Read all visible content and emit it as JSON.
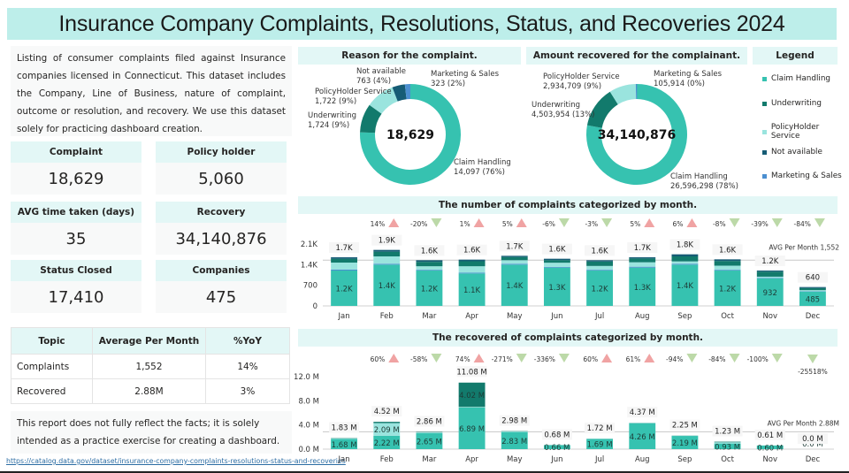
{
  "title": "Insurance Company Complaints, Resolutions, Status, and Recoveries 2024",
  "description": "Listing of consumer complaints filed against Insurance companies licensed in Connecticut. This dataset includes the Company, Line of Business, nature of complaint, outcome or resolution, and recovery. We use this dataset solely for practicing dashboard creation.",
  "kpis": [
    {
      "label": "Complaint",
      "value": "18,629"
    },
    {
      "label": "Policy holder",
      "value": "5,060"
    },
    {
      "label": "AVG time taken (days)",
      "value": "35"
    },
    {
      "label": "Recovery",
      "value": "34,140,876"
    },
    {
      "label": "Status Closed",
      "value": "17,410"
    },
    {
      "label": "Companies",
      "value": "475"
    }
  ],
  "summary_table": {
    "headers": [
      "Topic",
      "Average Per Month",
      "%YoY"
    ],
    "rows": [
      [
        "Complaints",
        "1,552",
        "14%"
      ],
      [
        "Recovered",
        "2.88M",
        "3%"
      ]
    ]
  },
  "note": "This report does not fully reflect the facts; it is solely intended as a practice exercise for creating a dashboard.",
  "source_link": "https://catalog.data.gov/dataset/insurance-company-complaints-resolutions-status-and-recoveries",
  "colors": {
    "claim_handling": "#36c2b0",
    "underwriting": "#127a6c",
    "policyholder_service": "#9ae4de",
    "not_available": "#165c75",
    "marketing_sales": "#4b8fd0",
    "up_arrow": "#f0a3a3",
    "down_arrow": "#bcd9a8",
    "header_bg": "#e3f7f6",
    "title_bg": "#bdeeea"
  },
  "legend": {
    "title": "Legend",
    "items": [
      "Claim Handling",
      "Underwriting",
      "PolicyHolder Service",
      "Not available",
      "Marketing & Sales"
    ]
  },
  "chart_data": [
    {
      "type": "pie",
      "title": "Reason for the complaint.",
      "center_label": "18,629",
      "slices": [
        {
          "name": "Claim Handling",
          "value": 14097,
          "label": "14,097 (76%)"
        },
        {
          "name": "Underwriting",
          "value": 1724,
          "label": "1,724 (9%)"
        },
        {
          "name": "PolicyHolder Service",
          "value": 1722,
          "label": "1,722 (9%)"
        },
        {
          "name": "Not available",
          "value": 763,
          "label": "763 (4%)"
        },
        {
          "name": "Marketing & Sales",
          "value": 323,
          "label": "323 (2%)"
        }
      ]
    },
    {
      "type": "pie",
      "title": "Amount recovered for the complainant.",
      "center_label": "34,140,876",
      "slices": [
        {
          "name": "Claim Handling",
          "value": 26596298,
          "label": "26,596,298 (78%)"
        },
        {
          "name": "Underwriting",
          "value": 4503954,
          "label": "4,503,954 (13%)"
        },
        {
          "name": "PolicyHolder Service",
          "value": 2934709,
          "label": "2,934,709 (9%)"
        },
        {
          "name": "Marketing & Sales",
          "value": 105914,
          "label": "105,914 (0%)"
        }
      ]
    },
    {
      "type": "bar",
      "stacked": true,
      "title": "The number of complaints categorized by month.",
      "categories": [
        "Jan",
        "Feb",
        "Mar",
        "Apr",
        "May",
        "Jun",
        "Jul",
        "Aug",
        "Sep",
        "Oct",
        "Nov",
        "Dec"
      ],
      "ylim": [
        0,
        2100
      ],
      "yticks": [
        "0",
        "700",
        "1.4K",
        "2.1K"
      ],
      "ytick_values": [
        0,
        700,
        1400,
        2100
      ],
      "series": [
        {
          "name": "Claim Handling",
          "values": [
            1200,
            1400,
            1200,
            1100,
            1400,
            1300,
            1200,
            1300,
            1400,
            1200,
            932,
            485
          ],
          "labels": [
            "1.2K",
            "1.4K",
            "1.2K",
            "1.1K",
            "1.4K",
            "1.3K",
            "1.2K",
            "1.3K",
            "1.4K",
            "1.2K",
            "932",
            "485"
          ]
        },
        {
          "name": "Marketing & Sales",
          "values": [
            30,
            30,
            25,
            25,
            30,
            25,
            25,
            30,
            30,
            25,
            20,
            10
          ]
        },
        {
          "name": "PolicyHolder Service",
          "values": [
            240,
            250,
            120,
            220,
            120,
            140,
            130,
            150,
            80,
            140,
            40,
            40
          ]
        },
        {
          "name": "Underwriting",
          "values": [
            130,
            160,
            150,
            170,
            110,
            90,
            150,
            130,
            170,
            160,
            170,
            70
          ]
        },
        {
          "name": "Not available",
          "values": [
            50,
            60,
            55,
            55,
            40,
            45,
            45,
            40,
            70,
            55,
            38,
            35
          ]
        }
      ],
      "totals": [
        "1.7K",
        "1.9K",
        "1.6K",
        "1.6K",
        "1.7K",
        "1.6K",
        "1.6K",
        "1.7K",
        "1.8K",
        "1.6K",
        "1.2K",
        "640"
      ],
      "total_values": [
        1650,
        1900,
        1550,
        1570,
        1700,
        1600,
        1550,
        1650,
        1750,
        1580,
        1200,
        640
      ],
      "yoy": [
        "14%",
        "-20%",
        "1%",
        "5%",
        "-6%",
        "-3%",
        "5%",
        "6%",
        "-8%",
        "-39%",
        "-84%"
      ],
      "yoy_direction": [
        "up",
        "down",
        "up",
        "up",
        "down",
        "down",
        "up",
        "up",
        "down",
        "down",
        "down"
      ],
      "reference_line": {
        "label": "AVG Per Month 1,552",
        "value": 1552
      }
    },
    {
      "type": "bar",
      "stacked": true,
      "title": "The recovered of complaints categorized by month.",
      "categories": [
        "Jan",
        "Feb",
        "Mar",
        "Apr",
        "May",
        "Jun",
        "Jul",
        "Aug",
        "Sep",
        "Oct",
        "Nov",
        "Dec"
      ],
      "ylim": [
        0,
        12
      ],
      "yticks": [
        "0.0 M",
        "4.0 M",
        "8.0 M",
        "12.0 M"
      ],
      "ytick_values": [
        0,
        4,
        8,
        12
      ],
      "series": [
        {
          "name": "Claim Handling",
          "values": [
            1.68,
            2.22,
            2.65,
            6.89,
            2.83,
            0.66,
            1.69,
            4.26,
            2.19,
            0.93,
            0.6,
            0.0
          ],
          "labels": [
            "1.68 M",
            "2.22 M",
            "2.65 M",
            "6.89 M",
            "2.83 M",
            "0.66 M",
            "1.69 M",
            "4.26 M",
            "2.19 M",
            "0.93 M",
            "0.60 M",
            "0.0 M"
          ]
        },
        {
          "name": "PolicyHolder Service",
          "values": [
            0.1,
            2.09,
            0.15,
            0.1,
            0.1,
            0.01,
            0.02,
            0.08,
            0.04,
            0.2,
            0.01,
            0.0
          ],
          "labels": [
            "",
            "2.09 M",
            "",
            "",
            "",
            "",
            "",
            "",
            "",
            "",
            "",
            ""
          ]
        },
        {
          "name": "Underwriting",
          "values": [
            0.05,
            0.21,
            0.06,
            4.02,
            0.05,
            0.01,
            0.01,
            0.03,
            0.02,
            0.1,
            0.0,
            0.0
          ],
          "labels": [
            "",
            "",
            "",
            "4.02 M",
            "",
            "",
            "",
            "",
            "",
            "",
            "",
            ""
          ]
        }
      ],
      "totals": [
        "1.83 M",
        "4.52 M",
        "2.86 M",
        "11.08 M",
        "2.98 M",
        "0.68 M",
        "1.72 M",
        "4.37 M",
        "2.25 M",
        "1.23 M",
        "0.61 M",
        "0.0 M"
      ],
      "total_values": [
        1.83,
        4.52,
        2.86,
        11.08,
        2.98,
        0.68,
        1.72,
        4.37,
        2.25,
        1.23,
        0.61,
        0.0
      ],
      "yoy": [
        "60%",
        "-58%",
        "74%",
        "-271%",
        "-336%",
        "60%",
        "61%",
        "-94%",
        "-84%",
        "-100%",
        "-25518%"
      ],
      "yoy_direction": [
        "up",
        "down",
        "up",
        "down",
        "down",
        "up",
        "up",
        "down",
        "down",
        "down",
        "down"
      ],
      "reference_line": {
        "label": "AVG Per Month 2.88M",
        "value": 2.88
      }
    }
  ]
}
